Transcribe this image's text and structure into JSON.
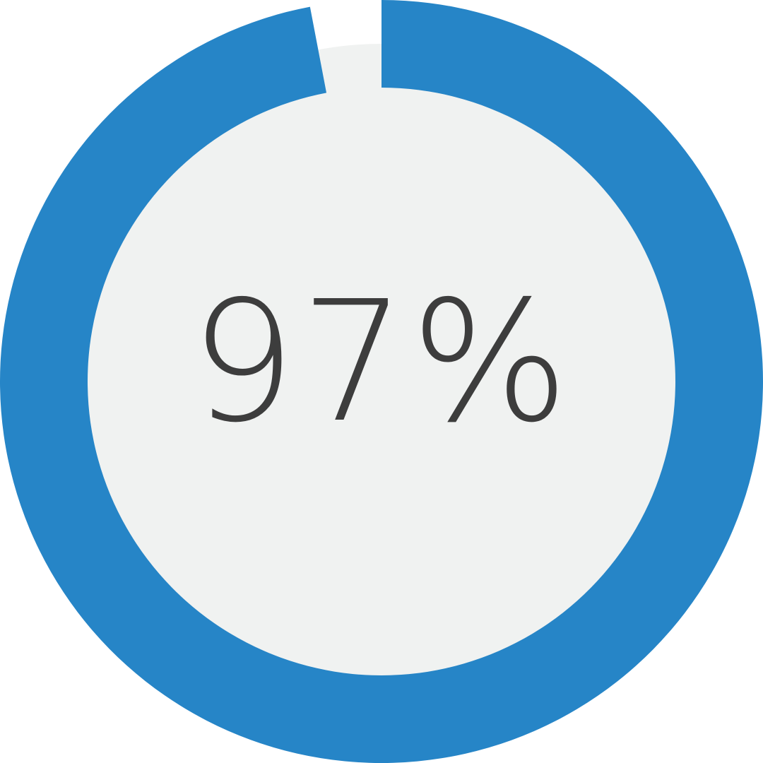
{
  "chart_data": {
    "type": "pie",
    "variant": "donut",
    "values": [
      97,
      3
    ],
    "value_percent": 97,
    "center_label": "97%",
    "colors": {
      "fill": "#2685C7",
      "track": "#F0F2F1",
      "text": "#3D3D3D"
    },
    "start": "top",
    "direction": "clockwise"
  }
}
